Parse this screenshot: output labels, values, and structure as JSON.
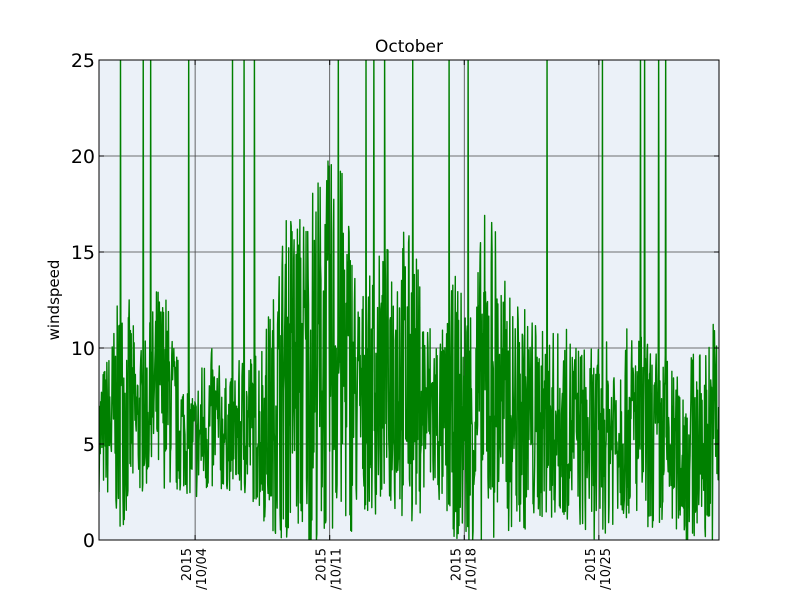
{
  "chart_data": {
    "type": "line",
    "title": "October",
    "xlabel": "",
    "ylabel": "windspeed",
    "ylim": [
      0,
      25
    ],
    "xlim": [
      "2015-09-29",
      "2015-10-31T06:00"
    ],
    "yticks": [
      "0",
      "5",
      "10",
      "15",
      "20",
      "25"
    ],
    "xticks": [
      {
        "date": "2015-10-04",
        "label": "2015\n/10/04"
      },
      {
        "date": "2015-10-11",
        "label": "2015\n/10/11"
      },
      {
        "date": "2015-10-18",
        "label": "2015\n/10/18"
      },
      {
        "date": "2015-10-25",
        "label": "2015\n/10/25"
      }
    ],
    "grid": true,
    "colors": {
      "line": "#008000",
      "plot_background": "#ebf1f8",
      "grid": "#444444"
    },
    "series": [
      {
        "x": [
          "2015-09-29",
          "2015-09-29T12:00",
          "2015-09-30",
          "2015-09-30T12:00",
          "2015-10-01",
          "2015-10-01T12:00",
          "2015-10-02",
          "2015-10-02T12:00",
          "2015-10-03",
          "2015-10-03T12:00",
          "2015-10-04",
          "2015-10-04T12:00",
          "2015-10-05",
          "2015-10-05T12:00",
          "2015-10-06",
          "2015-10-06T12:00",
          "2015-10-07",
          "2015-10-07T12:00",
          "2015-10-08",
          "2015-10-08T12:00",
          "2015-10-09",
          "2015-10-09T12:00",
          "2015-10-10",
          "2015-10-10T12:00",
          "2015-10-11",
          "2015-10-11T12:00",
          "2015-10-12",
          "2015-10-12T12:00",
          "2015-10-13",
          "2015-10-13T12:00",
          "2015-10-14",
          "2015-10-14T12:00",
          "2015-10-15",
          "2015-10-15T12:00",
          "2015-10-16",
          "2015-10-16T12:00",
          "2015-10-17",
          "2015-10-17T12:00",
          "2015-10-18",
          "2015-10-18T12:00",
          "2015-10-19",
          "2015-10-19T12:00",
          "2015-10-20",
          "2015-10-20T12:00",
          "2015-10-21",
          "2015-10-21T12:00",
          "2015-10-22",
          "2015-10-22T12:00",
          "2015-10-23",
          "2015-10-23T12:00",
          "2015-10-24",
          "2015-10-24T12:00",
          "2015-10-25",
          "2015-10-25T12:00",
          "2015-10-26",
          "2015-10-26T12:00",
          "2015-10-27",
          "2015-10-27T12:00",
          "2015-10-28",
          "2015-10-28T12:00",
          "2015-10-29",
          "2015-10-29T12:00",
          "2015-10-30",
          "2015-10-30T12:00",
          "2015-10-31"
        ],
        "mean": [
          5.5,
          6,
          6.5,
          7,
          6,
          6.5,
          7.5,
          8,
          6,
          5.5,
          5,
          6,
          6,
          5.5,
          5.5,
          6,
          6,
          6,
          6.5,
          8,
          9,
          8.5,
          9,
          9.5,
          10,
          10,
          9,
          7,
          7.5,
          8,
          8.5,
          9,
          8.5,
          8,
          7,
          6.5,
          6,
          7,
          6,
          6.5,
          8,
          9,
          7,
          6.5,
          6.5,
          6,
          6,
          6,
          6,
          6,
          5.5,
          5,
          5,
          5.5,
          6,
          6,
          6,
          5.5,
          5,
          5,
          4.5,
          4.5,
          5,
          5,
          6
        ],
        "amp": [
          3,
          4,
          6,
          6,
          4,
          4,
          6,
          5,
          4,
          3,
          3,
          4,
          4,
          3,
          3,
          4,
          4,
          5,
          6,
          8,
          9,
          9,
          10,
          10,
          10,
          10,
          9,
          6,
          6,
          7,
          7,
          8,
          8,
          7,
          5,
          5,
          5,
          7,
          7,
          7,
          9,
          9,
          7,
          6,
          6,
          6,
          5,
          5,
          5,
          5,
          5,
          5,
          5,
          5,
          5,
          5,
          5,
          5,
          5,
          5,
          4,
          5,
          5,
          5,
          6
        ]
      }
    ]
  }
}
